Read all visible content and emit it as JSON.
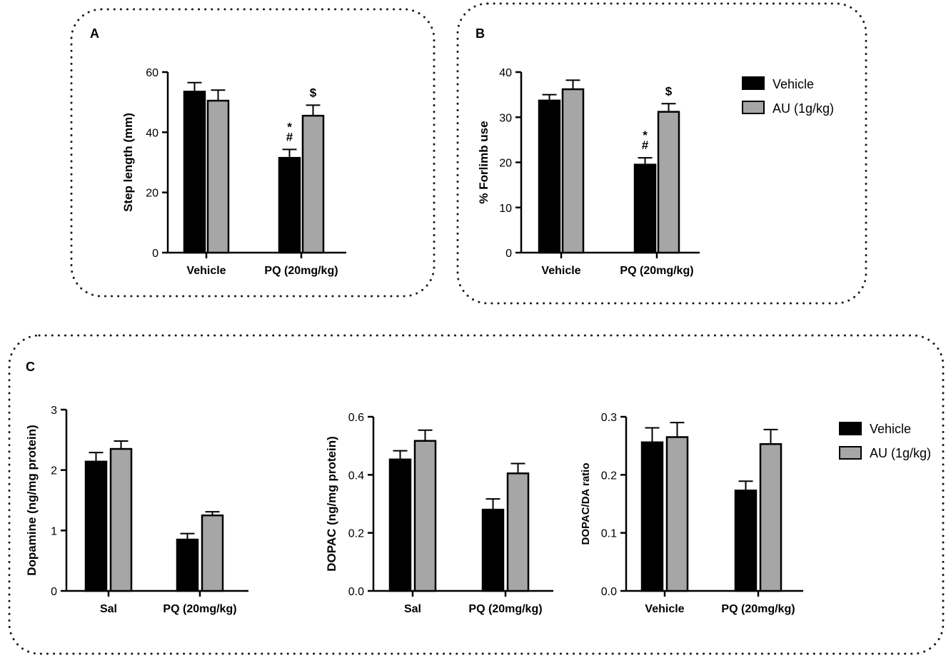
{
  "colors": {
    "vehicle": "#000000",
    "au": "#a6a6a6",
    "border": "#1a1a1a"
  },
  "legend_top": {
    "items": [
      {
        "label": "Vehicle"
      },
      {
        "label": "AU (1g/kg)"
      }
    ]
  },
  "legend_bottom": {
    "items": [
      {
        "label": "Vehicle"
      },
      {
        "label": "AU (1g/kg)"
      }
    ]
  },
  "chart_data": [
    {
      "id": "A",
      "panel_label": "A",
      "type": "bar",
      "ylabel": "Step length (mm)",
      "ylim": [
        0,
        60
      ],
      "yticks": [
        "0",
        "20",
        "40",
        "60"
      ],
      "ytick_values": [
        0,
        20,
        40,
        60
      ],
      "categories": [
        "Vehicle",
        "PQ (20mg/kg)"
      ],
      "series": [
        {
          "name": "Vehicle",
          "values": [
            53.5,
            31.5
          ],
          "errors": [
            3.0,
            2.8
          ]
        },
        {
          "name": "AU (1g/kg)",
          "values": [
            50.5,
            45.5
          ],
          "errors": [
            3.5,
            3.5
          ]
        }
      ],
      "annotations": [
        {
          "text": "*",
          "category": 1,
          "series": 0
        },
        {
          "text": "#",
          "category": 1,
          "series": 0
        },
        {
          "text": "$",
          "category": 1,
          "series": 1
        }
      ]
    },
    {
      "id": "B",
      "panel_label": "B",
      "type": "bar",
      "ylabel": "% Forlimb use",
      "ylim": [
        0,
        40
      ],
      "yticks": [
        "0",
        "10",
        "20",
        "30",
        "40"
      ],
      "ytick_values": [
        0,
        10,
        20,
        30,
        40
      ],
      "categories": [
        "Vehicle",
        "PQ (20mg/kg)"
      ],
      "series": [
        {
          "name": "Vehicle",
          "values": [
            33.7,
            19.5
          ],
          "errors": [
            1.3,
            1.5
          ]
        },
        {
          "name": "AU (1g/kg)",
          "values": [
            36.2,
            31.2
          ],
          "errors": [
            2.0,
            1.8
          ]
        }
      ],
      "annotations": [
        {
          "text": "*",
          "category": 1,
          "series": 0
        },
        {
          "text": "#",
          "category": 1,
          "series": 0
        },
        {
          "text": "$",
          "category": 1,
          "series": 1
        }
      ]
    },
    {
      "id": "C1",
      "panel_label": "C",
      "type": "bar",
      "ylabel": "Dopamine (ng/mg protein)",
      "ylim": [
        0,
        3
      ],
      "yticks": [
        "0",
        "1",
        "2",
        "3"
      ],
      "ytick_values": [
        0,
        1,
        2,
        3
      ],
      "categories": [
        "Sal",
        "PQ (20mg/kg)"
      ],
      "series": [
        {
          "name": "Vehicle",
          "values": [
            2.14,
            0.85
          ],
          "errors": [
            0.15,
            0.1
          ]
        },
        {
          "name": "AU (1g/kg)",
          "values": [
            2.35,
            1.25
          ],
          "errors": [
            0.13,
            0.06
          ]
        }
      ],
      "annotations": []
    },
    {
      "id": "C2",
      "type": "bar",
      "ylabel": "DOPAC (ng/mg protein)",
      "ylim": [
        0,
        0.6
      ],
      "yticks": [
        "0.0",
        "0.2",
        "0.4",
        "0.6"
      ],
      "ytick_values": [
        0,
        0.2,
        0.4,
        0.6
      ],
      "categories": [
        "Sal",
        "PQ (20mg/kg)"
      ],
      "series": [
        {
          "name": "Vehicle",
          "values": [
            0.453,
            0.28
          ],
          "errors": [
            0.03,
            0.037
          ]
        },
        {
          "name": "AU (1g/kg)",
          "values": [
            0.517,
            0.405
          ],
          "errors": [
            0.037,
            0.034
          ]
        }
      ],
      "annotations": []
    },
    {
      "id": "C3",
      "type": "bar",
      "ylabel": "DOPAC/DA ratio",
      "ylim": [
        0,
        0.3
      ],
      "yticks": [
        "0.0",
        "0.1",
        "0.2",
        "0.3"
      ],
      "ytick_values": [
        0,
        0.1,
        0.2,
        0.3
      ],
      "categories": [
        "Vehicle",
        "PQ (20mg/kg)"
      ],
      "series": [
        {
          "name": "Vehicle",
          "values": [
            0.256,
            0.173
          ],
          "errors": [
            0.025,
            0.016
          ]
        },
        {
          "name": "AU (1g/kg)",
          "values": [
            0.265,
            0.253
          ],
          "errors": [
            0.025,
            0.025
          ]
        }
      ],
      "annotations": []
    }
  ]
}
